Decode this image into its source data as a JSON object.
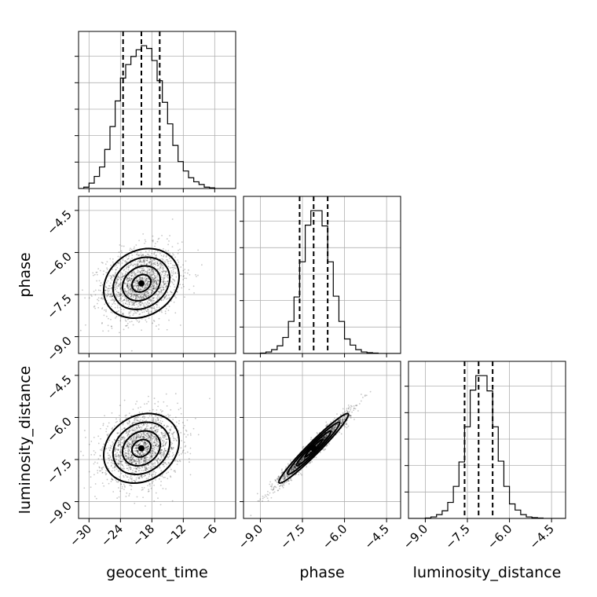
{
  "chart_data": {
    "type": "corner",
    "parameters": [
      "geocent_time",
      "phase",
      "luminosity_distance"
    ],
    "axis_labels": {
      "geocent_time": "geocent_time",
      "phase": "phase",
      "luminosity_distance": "luminosity_distance"
    },
    "ranges": {
      "geocent_time": [
        -32,
        -2
      ],
      "phase": [
        -9.6,
        -4.0
      ],
      "luminosity_distance": [
        -9.6,
        -4.0
      ]
    },
    "ticks": {
      "geocent_time": {
        "values": [
          -30,
          -24,
          -18,
          -12,
          -6
        ],
        "labels": [
          "−30",
          "−24",
          "−18",
          "−12",
          "−6"
        ]
      },
      "phase": {
        "values": [
          -9.0,
          -7.5,
          -6.0,
          -4.5
        ],
        "labels": [
          "−9.0",
          "−7.5",
          "−6.0",
          "−4.5"
        ]
      },
      "luminosity_distance": {
        "values": [
          -9.0,
          -7.5,
          -6.0,
          -4.5
        ],
        "labels": [
          "−9.0",
          "−7.5",
          "−6.0",
          "−4.5"
        ]
      }
    },
    "quantiles": {
      "geocent_time": [
        -23.5,
        -20.0,
        -16.5
      ],
      "phase": [
        -7.6,
        -7.1,
        -6.6
      ],
      "luminosity_distance": [
        -7.6,
        -7.1,
        -6.6
      ]
    },
    "histograms": {
      "geocent_time": {
        "bin_edges": [
          -32,
          -31,
          -30,
          -29,
          -28,
          -27,
          -26,
          -25,
          -24,
          -23,
          -22,
          -21,
          -20,
          -19,
          -18,
          -17,
          -16,
          -15,
          -14,
          -13,
          -12,
          -11,
          -10,
          -9,
          -8,
          -7,
          -6,
          -5,
          -4,
          -3,
          -2
        ],
        "counts": [
          0,
          1,
          4,
          9,
          16,
          29,
          46,
          65,
          82,
          92,
          98,
          103,
          106,
          104,
          95,
          80,
          64,
          48,
          32,
          20,
          13,
          8,
          5,
          3,
          1,
          0.5,
          0,
          0,
          0,
          0
        ]
      },
      "phase": {
        "bin_edges": [
          -9.6,
          -9.4,
          -9.2,
          -9.0,
          -8.8,
          -8.6,
          -8.4,
          -8.2,
          -8.0,
          -7.8,
          -7.6,
          -7.4,
          -7.2,
          -7.0,
          -6.8,
          -6.6,
          -6.4,
          -6.2,
          -6.0,
          -5.8,
          -5.6,
          -5.4,
          -5.2,
          -5.0,
          -4.8,
          -4.6,
          -4.4,
          -4.2,
          -4.0
        ],
        "counts": [
          0,
          0,
          0,
          0.5,
          2,
          5,
          10,
          21,
          42,
          74,
          120,
          168,
          187,
          187,
          167,
          120,
          75,
          42,
          19,
          11,
          5,
          2,
          1,
          0.5,
          0,
          0,
          0,
          0
        ]
      },
      "luminosity_distance": {
        "bin_edges": [
          -9.6,
          -9.4,
          -9.2,
          -9.0,
          -8.8,
          -8.6,
          -8.4,
          -8.2,
          -8.0,
          -7.8,
          -7.6,
          -7.4,
          -7.2,
          -7.0,
          -6.8,
          -6.6,
          -6.4,
          -6.2,
          -6.0,
          -5.8,
          -5.6,
          -5.4,
          -5.2,
          -5.0,
          -4.8,
          -4.6,
          -4.4,
          -4.2,
          -4.0
        ],
        "counts": [
          0,
          0,
          0,
          0.5,
          2,
          5,
          10,
          21,
          42,
          74,
          120,
          168,
          187,
          187,
          167,
          120,
          75,
          42,
          19,
          11,
          5,
          2,
          1,
          0.5,
          0,
          0,
          0,
          0
        ]
      }
    },
    "correlations": {
      "phase|geocent_time": 0.2,
      "luminosity_distance|geocent_time": 0.2,
      "luminosity_distance|phase": 0.97
    },
    "point_estimates": {
      "geocent_time": {
        "mean": -20,
        "sd": 3.6
      },
      "phase": {
        "mean": -7.1,
        "sd": 0.62
      },
      "luminosity_distance": {
        "mean": -7.1,
        "sd": 0.62
      }
    },
    "contour_levels_sigma": [
      0.5,
      1.0,
      1.5,
      2.0
    ],
    "grid": true,
    "layout": "lower-triangle 3x3"
  }
}
